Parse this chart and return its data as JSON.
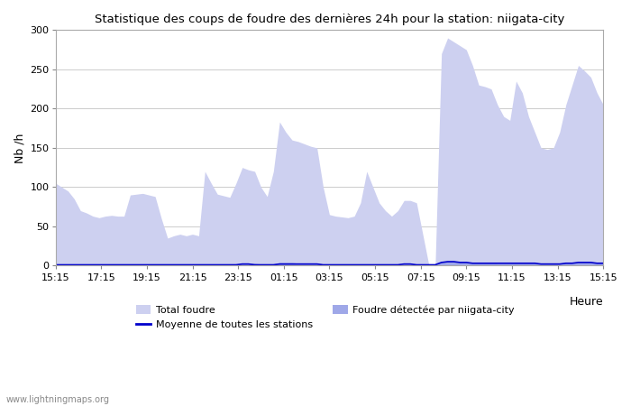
{
  "title": "Statistique des coups de foudre des dernières 24h pour la station: niigata-city",
  "xlabel": "Heure",
  "ylabel": "Nb /h",
  "watermark": "www.lightningmaps.org",
  "ylim": [
    0,
    300
  ],
  "total_foudre_color": "#cdd0f0",
  "foudre_niigata_color": "#9fa8e8",
  "moyenne_color": "#0000cc",
  "bg_color": "#ffffff",
  "grid_color": "#cccccc",
  "xtick_labels": [
    "15:15",
    "17:15",
    "19:15",
    "21:15",
    "23:15",
    "01:15",
    "03:15",
    "05:15",
    "07:15",
    "09:15",
    "11:15",
    "13:15",
    "15:15"
  ],
  "total_foudre": [
    105,
    100,
    95,
    85,
    70,
    67,
    63,
    61,
    63,
    64,
    63,
    63,
    90,
    91,
    92,
    90,
    88,
    60,
    35,
    38,
    40,
    38,
    40,
    38,
    120,
    105,
    91,
    89,
    87,
    105,
    125,
    122,
    120,
    100,
    88,
    120,
    183,
    170,
    160,
    158,
    155,
    152,
    150,
    100,
    65,
    63,
    62,
    61,
    63,
    80,
    120,
    100,
    80,
    70,
    63,
    70,
    83,
    83,
    80,
    40,
    0,
    0,
    270,
    290,
    285,
    280,
    275,
    255,
    230,
    228,
    225,
    205,
    190,
    185,
    235,
    220,
    190,
    170,
    150,
    148,
    150,
    170,
    205,
    230,
    255,
    248,
    240,
    220,
    205
  ],
  "foudre_niigata": [
    2,
    2,
    2,
    2,
    1,
    1,
    1,
    1,
    1,
    1,
    1,
    1,
    1,
    2,
    2,
    2,
    2,
    1,
    1,
    1,
    1,
    1,
    1,
    1,
    2,
    2,
    2,
    2,
    2,
    2,
    3,
    3,
    3,
    2,
    2,
    2,
    4,
    4,
    4,
    3,
    3,
    3,
    3,
    2,
    1,
    1,
    1,
    1,
    1,
    1,
    2,
    2,
    2,
    1,
    1,
    1,
    2,
    2,
    2,
    1,
    1,
    1,
    5,
    6,
    6,
    5,
    5,
    4,
    4,
    4,
    4,
    3,
    3,
    3,
    4,
    4,
    4,
    3,
    3,
    3,
    3,
    3,
    4,
    4,
    5,
    5,
    5,
    4,
    4
  ],
  "moyenne": [
    1,
    1,
    1,
    1,
    1,
    1,
    1,
    1,
    1,
    1,
    1,
    1,
    1,
    1,
    1,
    1,
    1,
    1,
    1,
    1,
    1,
    1,
    1,
    1,
    1,
    1,
    1,
    1,
    1,
    1,
    2,
    2,
    1,
    1,
    1,
    1,
    2,
    2,
    2,
    2,
    2,
    2,
    2,
    1,
    1,
    1,
    1,
    1,
    1,
    1,
    1,
    1,
    1,
    1,
    1,
    1,
    2,
    2,
    1,
    1,
    1,
    1,
    4,
    5,
    5,
    4,
    4,
    3,
    3,
    3,
    3,
    3,
    3,
    3,
    3,
    3,
    3,
    3,
    2,
    2,
    2,
    2,
    3,
    3,
    4,
    4,
    4,
    3,
    3
  ]
}
